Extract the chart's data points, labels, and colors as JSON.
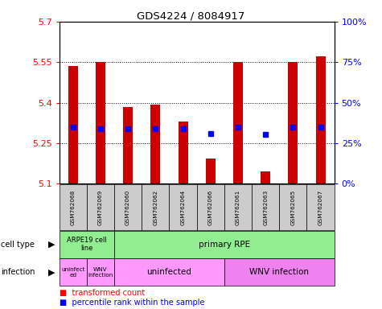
{
  "title": "GDS4224 / 8084917",
  "samples": [
    "GSM762068",
    "GSM762069",
    "GSM762060",
    "GSM762062",
    "GSM762064",
    "GSM762066",
    "GSM762061",
    "GSM762063",
    "GSM762065",
    "GSM762067"
  ],
  "red_values": [
    5.535,
    5.552,
    5.385,
    5.392,
    5.33,
    5.195,
    5.552,
    5.145,
    5.552,
    5.572
  ],
  "blue_values": [
    5.31,
    5.305,
    5.305,
    5.305,
    5.305,
    5.285,
    5.31,
    5.283,
    5.31,
    5.31
  ],
  "ymin": 5.1,
  "ymax": 5.7,
  "yticks": [
    5.1,
    5.25,
    5.4,
    5.55,
    5.7
  ],
  "ytick_labels": [
    "5.1",
    "5.25",
    "5.4",
    "5.55",
    "5.7"
  ],
  "right_yticks_pct": [
    0,
    25,
    50,
    75,
    100
  ],
  "dotted_lines": [
    5.25,
    5.4,
    5.55
  ],
  "green_color": "#90EE90",
  "pink_light": "#FF99FF",
  "pink_dark": "#EE82EE",
  "gray_color": "#CCCCCC",
  "bar_width": 0.35
}
